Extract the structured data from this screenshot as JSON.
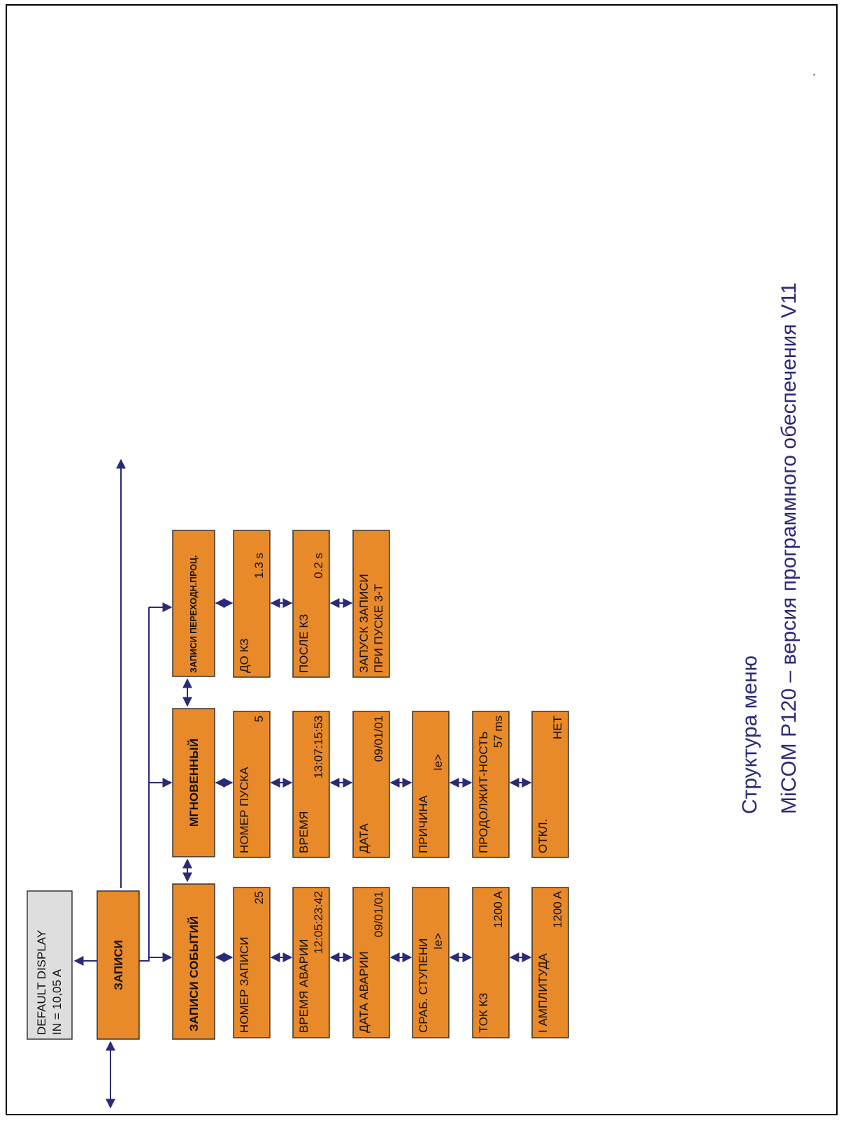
{
  "title": {
    "line1": "Структура меню",
    "line2": "MiCOM P120 – версия программного обеспечения V11",
    "dot": "."
  },
  "default_display": {
    "line1": "DEFAULT DISPLAY",
    "line2": "IN = 10,05 A"
  },
  "root": {
    "label": "ЗАПИСИ"
  },
  "columns": {
    "fault_records": {
      "header": "ЗАПИСИ СОБЫТИЙ",
      "items": [
        {
          "label": "НОМЕР ЗАПИСИ",
          "value": "25"
        },
        {
          "label": "ВРЕМЯ АВАРИИ",
          "value": "12:05:23:42"
        },
        {
          "label": "ДАТА АВАРИИ",
          "value": "09/01/01"
        },
        {
          "label": "СРАБ. СТУПЕНИ",
          "value": "Ie>"
        },
        {
          "label": "ТОК КЗ",
          "value": "1200 A"
        },
        {
          "label": "I АМПЛИТУДА",
          "value": "1200 A"
        }
      ]
    },
    "instantaneous": {
      "header": "МГНОВЕННЫЙ",
      "items": [
        {
          "label": "НОМЕР ПУСКА",
          "value": "5"
        },
        {
          "label": "ВРЕМЯ",
          "value": "13:07:15:53"
        },
        {
          "label": "ДАТА",
          "value": "09/01/01"
        },
        {
          "label": "ПРИЧИНА",
          "value": "Ie>"
        },
        {
          "label": "ПРОДОЛЖИТ-НОСТЬ",
          "value": "57 ms"
        },
        {
          "label": "ОТКЛ.",
          "value": "НЕТ"
        }
      ]
    },
    "disturbance": {
      "header": "ЗАПИСИ ПЕРЕХОДН.ПРОЦ.",
      "items": [
        {
          "label": "ДО КЗ",
          "value": "1.3 s"
        },
        {
          "label": "ПОСЛЕ КЗ",
          "value": "0.2 s"
        },
        {
          "label": "ЗАПУСК ЗАПИСИ",
          "value": "ПРИ ПУСКЕ 3-Т"
        }
      ]
    }
  },
  "colors": {
    "box": "#e8892a",
    "default_box": "#dedede",
    "lines": "#2a2a7a"
  }
}
